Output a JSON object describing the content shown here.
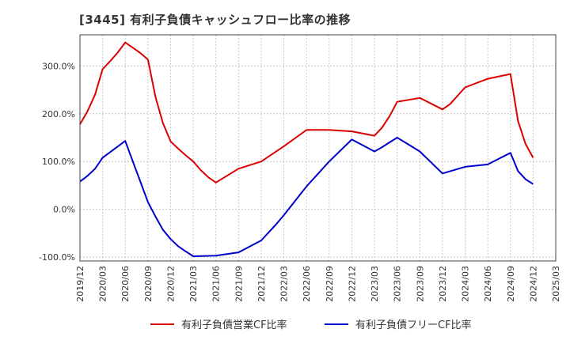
{
  "chart_data": {
    "type": "line",
    "title": "[3445]  有利子負債キャッシュフロー比率の推移",
    "xlabel": "",
    "ylabel": "",
    "x_ticks": [
      "2019/12",
      "2020/03",
      "2020/06",
      "2020/09",
      "2020/12",
      "2021/03",
      "2021/06",
      "2021/09",
      "2021/12",
      "2022/03",
      "2022/06",
      "2022/09",
      "2022/12",
      "2023/03",
      "2023/06",
      "2023/09",
      "2023/12",
      "2024/03",
      "2024/06",
      "2024/09",
      "2024/12",
      "2025/03"
    ],
    "y_ticks": [
      "-100.0%",
      "0.0%",
      "100.0%",
      "200.0%",
      "300.0%"
    ],
    "y_tick_values": [
      -100,
      0,
      100,
      200,
      300
    ],
    "ylim": [
      -108,
      365
    ],
    "xlim": [
      "2019/12",
      "2025/03"
    ],
    "grid": true,
    "legend_position": "bottom",
    "series": [
      {
        "name": "有利子負債営業CF比率",
        "color": "#dd0000",
        "points": [
          [
            "2019/12",
            178
          ],
          [
            "2020/01",
            205
          ],
          [
            "2020/02",
            240
          ],
          [
            "2020/03",
            293
          ],
          [
            "2020/04",
            310
          ],
          [
            "2020/05",
            328
          ],
          [
            "2020/06",
            349
          ],
          [
            "2020/07",
            338
          ],
          [
            "2020/08",
            327
          ],
          [
            "2020/09",
            313
          ],
          [
            "2020/10",
            235
          ],
          [
            "2020/11",
            180
          ],
          [
            "2020/12",
            142
          ],
          [
            "2021/01",
            127
          ],
          [
            "2021/02",
            113
          ],
          [
            "2021/03",
            100
          ],
          [
            "2021/04",
            82
          ],
          [
            "2021/05",
            67
          ],
          [
            "2021/06",
            56
          ],
          [
            "2021/09",
            85
          ],
          [
            "2021/12",
            100
          ],
          [
            "2022/03",
            132
          ],
          [
            "2022/06",
            166
          ],
          [
            "2022/09",
            166
          ],
          [
            "2022/12",
            163
          ],
          [
            "2023/03",
            154
          ],
          [
            "2023/04",
            171
          ],
          [
            "2023/05",
            195
          ],
          [
            "2023/06",
            225
          ],
          [
            "2023/09",
            233
          ],
          [
            "2023/12",
            209
          ],
          [
            "2024/01",
            220
          ],
          [
            "2024/03",
            255
          ],
          [
            "2024/06",
            273
          ],
          [
            "2024/09",
            283
          ],
          [
            "2024/10",
            185
          ],
          [
            "2024/11",
            137
          ],
          [
            "2024/12",
            108
          ]
        ]
      },
      {
        "name": "有利子負債フリーCF比率",
        "color": "#0000cc",
        "points": [
          [
            "2019/12",
            58
          ],
          [
            "2020/01",
            70
          ],
          [
            "2020/02",
            85
          ],
          [
            "2020/03",
            108
          ],
          [
            "2020/06",
            143
          ],
          [
            "2020/07",
            100
          ],
          [
            "2020/08",
            58
          ],
          [
            "2020/09",
            15
          ],
          [
            "2020/10",
            -15
          ],
          [
            "2020/11",
            -43
          ],
          [
            "2020/12",
            -62
          ],
          [
            "2021/01",
            -77
          ],
          [
            "2021/02",
            -88
          ],
          [
            "2021/03",
            -98
          ],
          [
            "2021/06",
            -97
          ],
          [
            "2021/09",
            -90
          ],
          [
            "2021/12",
            -65
          ],
          [
            "2022/01",
            -48
          ],
          [
            "2022/02",
            -31
          ],
          [
            "2022/03",
            -12
          ],
          [
            "2022/06",
            48
          ],
          [
            "2022/09",
            100
          ],
          [
            "2022/12",
            146
          ],
          [
            "2023/03",
            121
          ],
          [
            "2023/04",
            130
          ],
          [
            "2023/05",
            140
          ],
          [
            "2023/06",
            150
          ],
          [
            "2023/09",
            121
          ],
          [
            "2023/12",
            75
          ],
          [
            "2024/03",
            89
          ],
          [
            "2024/06",
            94
          ],
          [
            "2024/09",
            118
          ],
          [
            "2024/10",
            80
          ],
          [
            "2024/11",
            63
          ],
          [
            "2024/12",
            53
          ]
        ]
      }
    ]
  }
}
